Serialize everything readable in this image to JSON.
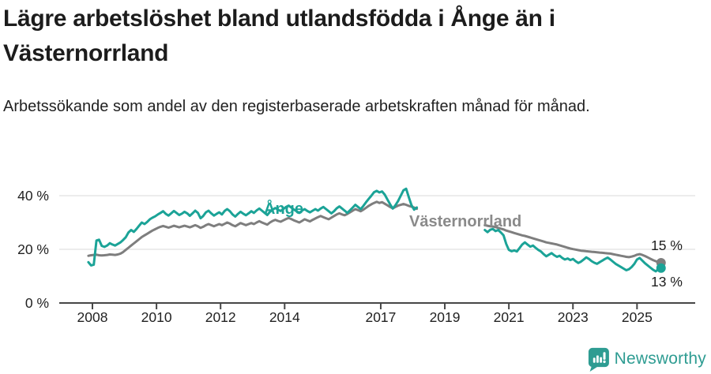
{
  "header": {
    "title": "Lägre arbetslöshet bland utlandsfödda i Ånge än i Västernorrland",
    "subtitle": "Arbetssökande som andel av den registerbaserade arbetskraften månad för månad."
  },
  "footer": {
    "brand": "Newsworthy",
    "logo_icon": "newsworthy-pin-barchart-icon"
  },
  "colors": {
    "ange_line": "#1ba397",
    "vasternorrland_line": "#7e7e7e",
    "vasternorrland_label": "#8a8a8a",
    "title_text": "#1c1c1c",
    "axis_line": "#474747",
    "tick_text": "#222222",
    "gridline": "#e1e1e1",
    "end_label_text": "#1d1d1d",
    "brand_teal": "#2e9c92"
  },
  "chart_data": {
    "type": "line",
    "title": "Lägre arbetslöshet bland utlandsfödda i Ånge än i Västernorrland",
    "subtitle": "Arbetssökande som andel av den registerbaserade arbetskraften månad för månad.",
    "unit": "%",
    "grid": "horizontal-only",
    "legend_position": "inline-labels",
    "x_axis": {
      "type": "time-years",
      "range": [
        2007.6,
        2026.3
      ],
      "ticks": [
        2008,
        2010,
        2012,
        2014,
        2017,
        2019,
        2021,
        2023,
        2025
      ],
      "tick_labels": [
        "2008",
        "2010",
        "2012",
        "2014",
        "2017",
        "2019",
        "2021",
        "2023",
        "2025"
      ]
    },
    "y_axis": {
      "range": [
        0,
        45
      ],
      "ticks": [
        0,
        20,
        40
      ],
      "tick_labels": [
        "0 %",
        "20 %",
        "40 %"
      ]
    },
    "data_gap_note": "no data plotted between early 2018 and spring 2020",
    "series": [
      {
        "name": "Västernorrland",
        "color_key": "vasternorrland_line",
        "label_color_key": "vasternorrland_label",
        "end_label": "15 %",
        "end_value": 15,
        "segments": [
          {
            "start_year": 2007.875,
            "step_years": 0.08333,
            "values": [
              17.6,
              17.8,
              17.9,
              18.0,
              17.8,
              17.7,
              17.8,
              17.9,
              18.1,
              18.0,
              17.9,
              18.1,
              18.4,
              19.0,
              19.8,
              20.6,
              21.4,
              22.2,
              23.0,
              23.8,
              24.6,
              25.2,
              25.8,
              26.4,
              27.0,
              27.5,
              28.0,
              28.4,
              28.7,
              28.4,
              28.1,
              28.4,
              28.8,
              28.5,
              28.2,
              28.5,
              28.8,
              28.5,
              28.2,
              28.6,
              29.0,
              28.6,
              28.0,
              28.4,
              29.0,
              29.4,
              29.0,
              28.6,
              29.0,
              29.4,
              29.0,
              29.5,
              30.0,
              29.6,
              29.0,
              28.6,
              29.2,
              29.8,
              29.4,
              29.0,
              29.4,
              29.8,
              29.4,
              30.0,
              30.5,
              30.0,
              29.6,
              29.2,
              30.0,
              30.6,
              31.0,
              30.6,
              30.3,
              30.8,
              31.3,
              31.7,
              31.3,
              30.8,
              30.4,
              30.0,
              30.6,
              31.2,
              30.8,
              30.4,
              31.0,
              31.5,
              32.0,
              32.4,
              32.0,
              31.6,
              31.2,
              31.8,
              32.4,
              33.0,
              33.4,
              33.0,
              32.7,
              33.2,
              33.8,
              34.4,
              35.0,
              34.6,
              34.2,
              34.8,
              35.5,
              36.2,
              36.8,
              37.3,
              37.7,
              37.3,
              37.6,
              37.0,
              36.4,
              35.8,
              35.3,
              35.8,
              36.3,
              36.6,
              36.9,
              36.6,
              36.2,
              35.9,
              35.6,
              35.1
            ]
          },
          {
            "start_year": 2020.25,
            "step_years": 0.08333,
            "values": [
              29.0,
              28.8,
              28.6,
              28.5,
              28.3,
              28.0,
              27.7,
              27.4,
              27.0,
              26.7,
              26.4,
              26.1,
              25.8,
              25.5,
              25.2,
              25.0,
              24.7,
              24.4,
              24.1,
              23.8,
              23.5,
              23.2,
              22.9,
              22.6,
              22.4,
              22.2,
              22.0,
              21.8,
              21.5,
              21.2,
              20.9,
              20.6,
              20.3,
              20.1,
              19.9,
              19.7,
              19.5,
              19.4,
              19.3,
              19.2,
              19.1,
              19.0,
              18.9,
              18.8,
              18.7,
              18.6,
              18.5,
              18.4,
              18.2,
              18.0,
              17.8,
              17.6,
              17.4,
              17.2,
              17.1,
              17.3,
              17.6,
              18.0,
              18.2,
              17.9,
              17.5,
              17.0,
              16.5,
              16.0,
              15.6,
              15.2,
              15.0
            ]
          }
        ]
      },
      {
        "name": "Ånge",
        "color_key": "ange_line",
        "label_color_key": "ange_line",
        "end_label": "13 %",
        "end_value": 13,
        "segments": [
          {
            "start_year": 2007.875,
            "step_years": 0.08333,
            "values": [
              15.2,
              14.0,
              14.3,
              23.3,
              23.6,
              21.3,
              20.9,
              21.4,
              22.3,
              21.8,
              21.4,
              22.0,
              22.6,
              23.5,
              24.5,
              26.3,
              27.2,
              26.5,
              27.6,
              28.8,
              30.0,
              29.4,
              30.2,
              31.2,
              31.8,
              32.3,
              33.0,
              33.6,
              34.2,
              33.2,
              32.6,
              33.4,
              34.3,
              33.6,
              32.8,
              33.3,
              34.0,
              33.4,
              32.5,
              33.4,
              34.4,
              33.6,
              31.6,
              32.4,
              33.8,
              34.4,
              33.4,
              32.6,
              33.2,
              33.8,
              33.0,
              34.3,
              35.0,
              34.2,
              33.0,
              32.2,
              33.2,
              34.0,
              33.3,
              32.7,
              33.4,
              34.2,
              33.6,
              34.5,
              35.2,
              34.4,
              33.6,
              32.8,
              34.0,
              34.8,
              35.4,
              34.8,
              34.3,
              35.0,
              35.8,
              36.3,
              35.6,
              34.8,
              34.2,
              33.6,
              34.4,
              35.0,
              34.3,
              33.8,
              34.4,
              35.0,
              34.4,
              35.2,
              35.8,
              35.0,
              34.2,
              33.4,
              34.2,
              35.3,
              36.0,
              35.2,
              34.4,
              33.6,
              34.6,
              35.6,
              36.6,
              35.8,
              35.0,
              36.2,
              37.6,
              38.8,
              40.0,
              41.3,
              41.8,
              41.2,
              41.6,
              40.4,
              38.6,
              36.8,
              35.2,
              36.4,
              38.0,
              40.0,
              42.0,
              42.6,
              39.5,
              36.5,
              34.8,
              35.6
            ]
          },
          {
            "start_year": 2020.25,
            "step_years": 0.08333,
            "values": [
              27.2,
              26.4,
              27.3,
              27.6,
              26.8,
              27.2,
              26.3,
              25.2,
              22.0,
              19.8,
              19.3,
              19.6,
              19.2,
              20.5,
              21.8,
              22.6,
              21.8,
              21.0,
              21.4,
              20.6,
              19.8,
              19.2,
              18.2,
              17.4,
              18.0,
              18.6,
              17.8,
              17.2,
              17.6,
              16.8,
              16.2,
              16.6,
              16.0,
              16.4,
              15.6,
              14.9,
              15.4,
              16.2,
              17.0,
              16.4,
              15.6,
              15.0,
              14.6,
              15.2,
              15.8,
              16.4,
              16.9,
              16.2,
              15.4,
              14.6,
              14.0,
              13.4,
              12.8,
              12.2,
              12.6,
              13.4,
              14.6,
              16.2,
              16.8,
              15.8,
              14.8,
              14.0,
              13.2,
              12.4,
              11.8,
              12.6,
              13.0
            ]
          }
        ]
      }
    ]
  }
}
